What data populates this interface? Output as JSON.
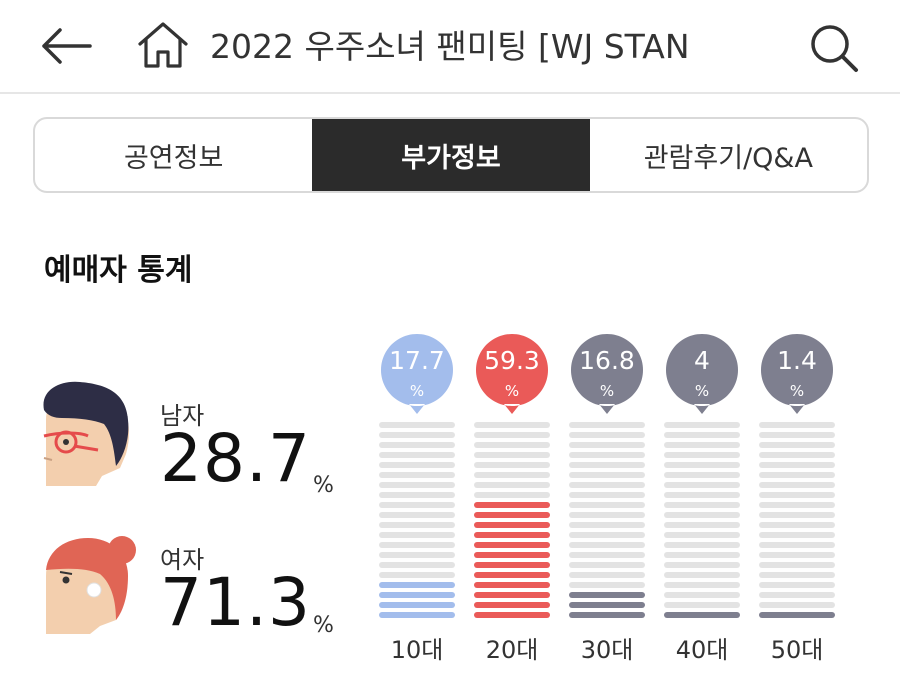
{
  "header": {
    "title": "2022 우주소녀 팬미팅 [WJ STAN",
    "icons": {
      "back": "arrow-left-icon",
      "home": "home-icon",
      "search": "search-icon"
    }
  },
  "tabs": [
    {
      "label": "공연정보",
      "active": false
    },
    {
      "label": "부가정보",
      "active": true
    },
    {
      "label": "관람후기/Q&A",
      "active": false
    }
  ],
  "section": {
    "title": "예매자 통계"
  },
  "gender": {
    "male": {
      "label": "남자",
      "value": "28.7",
      "unit": "%"
    },
    "female": {
      "label": "여자",
      "value": "71.3",
      "unit": "%"
    }
  },
  "age_stats": {
    "pct_symbol": "%",
    "groups": [
      {
        "label": "10대",
        "value": "17.7",
        "color": "#a3bdec"
      },
      {
        "label": "20대",
        "value": "59.3",
        "color": "#ea5a58"
      },
      {
        "label": "30대",
        "value": "16.8",
        "color": "#7e7f8f"
      },
      {
        "label": "40대",
        "value": "4",
        "color": "#7e7f8f"
      },
      {
        "label": "50대",
        "value": "1.4",
        "color": "#7e7f8f"
      }
    ]
  },
  "colors": {
    "bar_empty": "#e3e3e3",
    "tab_active_bg": "#2b2b2b"
  }
}
